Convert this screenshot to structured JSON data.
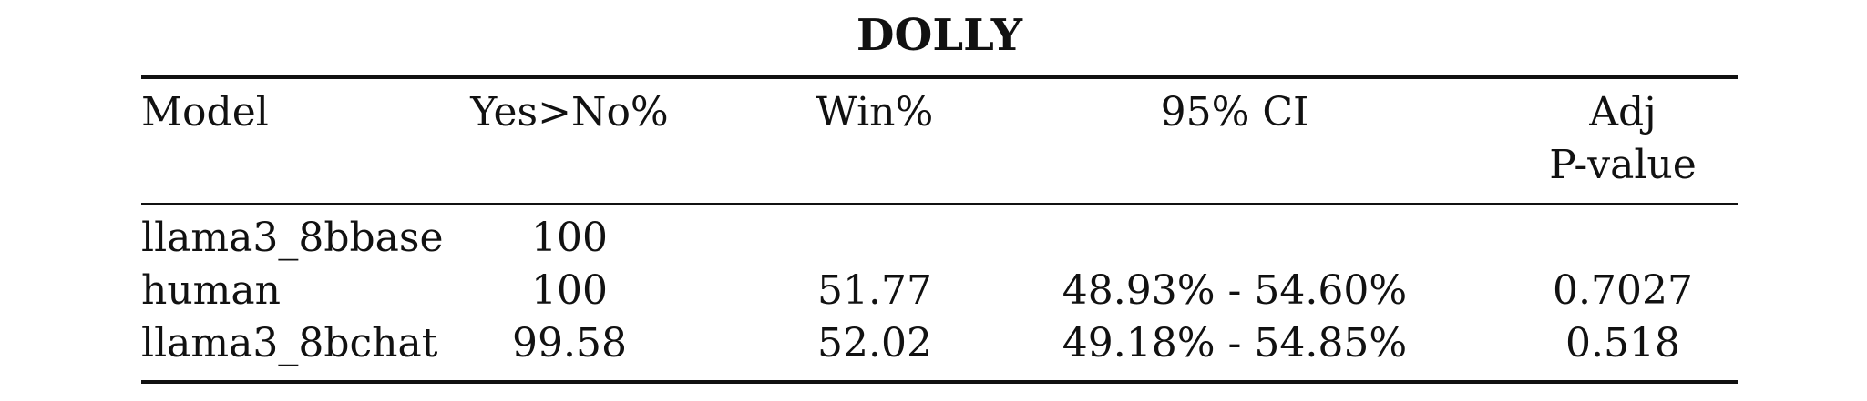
{
  "caption": "DOLLY",
  "headers": {
    "model": "Model",
    "yes_no": "Yes>No%",
    "win": "Win%",
    "ci": "95% CI",
    "p_line1": "Adj",
    "p_line2": "P-value"
  },
  "rows": [
    {
      "model": "llama3_8bbase",
      "yes_no": "100",
      "win": "",
      "ci": "",
      "p": ""
    },
    {
      "model": "human",
      "yes_no": "100",
      "win": "51.77",
      "ci": "48.93% - 54.60%",
      "p": "0.7027"
    },
    {
      "model": "llama3_8bchat",
      "yes_no": "99.58",
      "win": "52.02",
      "ci": "49.18% - 54.85%",
      "p": "0.518"
    }
  ]
}
